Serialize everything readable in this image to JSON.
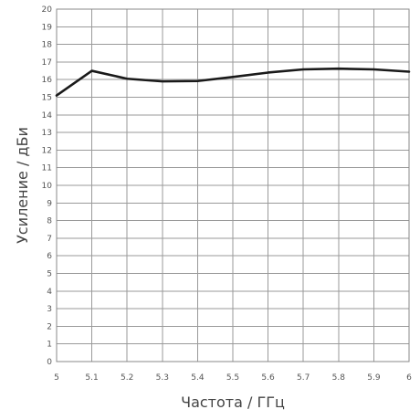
{
  "chart_data": {
    "type": "line",
    "title": "",
    "xlabel": "Частота / ГГц",
    "ylabel": "Усиление / дБи",
    "xlim": [
      5,
      6
    ],
    "ylim": [
      0,
      20
    ],
    "x_ticks": [
      "5",
      "5.1",
      "5.2",
      "5.3",
      "5.4",
      "5.5",
      "5.6",
      "5.7",
      "5.8",
      "5.9",
      "6"
    ],
    "y_ticks": [
      "0",
      "1",
      "2",
      "3",
      "4",
      "5",
      "6",
      "7",
      "8",
      "9",
      "10",
      "11",
      "12",
      "13",
      "14",
      "15",
      "16",
      "17",
      "18",
      "19",
      "20"
    ],
    "grid": true,
    "legend": "none",
    "series": [
      {
        "color": "#1a1a1a",
        "x": [
          5.0,
          5.1,
          5.2,
          5.3,
          5.4,
          5.5,
          5.6,
          5.7,
          5.8,
          5.9,
          6.0
        ],
        "y": [
          15.1,
          16.5,
          16.05,
          15.9,
          15.92,
          16.15,
          16.4,
          16.58,
          16.62,
          16.58,
          16.45
        ]
      }
    ],
    "colors": {
      "grid": "#9a9a9a",
      "axis": "#888888"
    }
  }
}
